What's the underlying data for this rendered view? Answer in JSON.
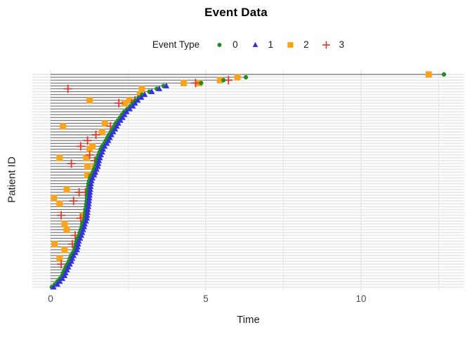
{
  "title": "Event Data",
  "legend": {
    "title": "Event Type",
    "items": [
      {
        "label": "0",
        "shape": "circle",
        "color": "#228B22"
      },
      {
        "label": "1",
        "shape": "triangle",
        "color": "#3434D6"
      },
      {
        "label": "2",
        "shape": "square",
        "color": "#F9A41E"
      },
      {
        "label": "3",
        "shape": "plus",
        "color": "#DE3A2E"
      }
    ]
  },
  "chart_data": {
    "type": "scatter",
    "title": "Event Data",
    "xlabel": "Time",
    "ylabel": "Patient ID",
    "x_ticks": [
      0,
      5,
      10
    ],
    "x_minor_ticks": [
      2.5,
      7.5,
      12.5
    ],
    "xlim": [
      -0.6,
      13.3
    ],
    "y_axis_labels_shown": false,
    "grid": true,
    "legend_position": "top",
    "note": "75 patients sorted by last event time; gray segment spans 0 to last event; events: type 0=green circle, 1=blue triangle, 2=orange square, 3=red plus",
    "colors": {
      "0": "#228B22",
      "1": "#3434D6",
      "2": "#F9A41E",
      "3": "#DE3A2E",
      "segment": "#787878",
      "grid": "#E8E8E8",
      "tick_text": "#4D4D4D"
    },
    "patients": [
      {
        "events": [
          [
            2,
            12.18
          ],
          [
            0,
            12.67
          ]
        ]
      },
      {
        "events": [
          [
            2,
            6.02
          ],
          [
            0,
            6.29
          ]
        ]
      },
      {
        "events": [
          [
            2,
            5.46
          ],
          [
            0,
            5.57
          ],
          [
            3,
            5.73
          ]
        ]
      },
      {
        "events": [
          [
            2,
            4.29
          ],
          [
            3,
            4.67
          ],
          [
            2,
            4.79
          ],
          [
            0,
            4.85
          ]
        ]
      },
      {
        "events": [
          [
            0,
            3.64
          ],
          [
            1,
            3.73
          ]
        ]
      },
      {
        "events": [
          [
            3,
            0.56
          ],
          [
            2,
            2.94
          ],
          [
            0,
            3.42
          ],
          [
            1,
            3.5
          ]
        ]
      },
      {
        "events": [
          [
            0,
            3.18
          ],
          [
            1,
            3.26
          ]
        ]
      },
      {
        "events": [
          [
            2,
            2.88
          ],
          [
            0,
            2.95
          ],
          [
            1,
            3.03
          ]
        ]
      },
      {
        "events": [
          [
            0,
            2.84
          ],
          [
            1,
            2.92
          ]
        ]
      },
      {
        "events": [
          [
            2,
            1.26
          ],
          [
            2,
            2.54
          ],
          [
            3,
            2.72
          ],
          [
            0,
            2.73
          ],
          [
            1,
            2.81
          ]
        ]
      },
      {
        "events": [
          [
            3,
            2.2
          ],
          [
            2,
            2.39
          ],
          [
            0,
            2.64
          ],
          [
            1,
            2.72
          ]
        ]
      },
      {
        "events": [
          [
            0,
            2.57
          ],
          [
            1,
            2.65
          ]
        ]
      },
      {
        "events": [
          [
            0,
            2.47
          ],
          [
            1,
            2.55
          ]
        ]
      },
      {
        "events": [
          [
            0,
            2.37
          ],
          [
            1,
            2.45
          ]
        ]
      },
      {
        "events": [
          [
            0,
            2.3
          ],
          [
            1,
            2.38
          ]
        ]
      },
      {
        "events": [
          [
            0,
            2.24
          ],
          [
            1,
            2.32
          ]
        ]
      },
      {
        "events": [
          [
            0,
            2.17
          ],
          [
            1,
            2.25
          ]
        ]
      },
      {
        "events": [
          [
            2,
            1.75
          ],
          [
            0,
            2.1
          ],
          [
            1,
            2.18
          ]
        ]
      },
      {
        "events": [
          [
            2,
            0.4
          ],
          [
            3,
            1.93
          ],
          [
            0,
            2.05
          ],
          [
            1,
            2.13
          ]
        ]
      },
      {
        "events": [
          [
            0,
            2.0
          ],
          [
            1,
            2.08
          ]
        ]
      },
      {
        "events": [
          [
            2,
            1.66
          ],
          [
            0,
            1.94
          ],
          [
            1,
            2.02
          ]
        ]
      },
      {
        "events": [
          [
            3,
            1.46
          ],
          [
            0,
            1.88
          ],
          [
            1,
            1.96
          ]
        ]
      },
      {
        "events": [
          [
            0,
            1.83
          ],
          [
            1,
            1.91
          ]
        ]
      },
      {
        "events": [
          [
            3,
            1.19
          ],
          [
            0,
            1.78
          ],
          [
            1,
            1.86
          ]
        ]
      },
      {
        "events": [
          [
            0,
            1.73
          ],
          [
            1,
            1.81
          ]
        ]
      },
      {
        "events": [
          [
            3,
            0.97
          ],
          [
            2,
            1.35
          ],
          [
            0,
            1.66
          ],
          [
            1,
            1.74
          ]
        ]
      },
      {
        "events": [
          [
            2,
            1.26
          ],
          [
            0,
            1.61
          ],
          [
            1,
            1.69
          ]
        ]
      },
      {
        "events": [
          [
            0,
            1.58
          ],
          [
            1,
            1.66
          ]
        ]
      },
      {
        "events": [
          [
            3,
            1.26
          ],
          [
            0,
            1.54
          ],
          [
            1,
            1.62
          ]
        ]
      },
      {
        "events": [
          [
            2,
            0.29
          ],
          [
            2,
            1.15
          ],
          [
            0,
            1.51
          ],
          [
            1,
            1.59
          ]
        ]
      },
      {
        "events": [
          [
            3,
            1.42
          ],
          [
            0,
            1.48
          ],
          [
            1,
            1.56
          ]
        ]
      },
      {
        "events": [
          [
            3,
            0.67
          ],
          [
            0,
            1.46
          ],
          [
            1,
            1.54
          ]
        ]
      },
      {
        "events": [
          [
            2,
            1.19
          ],
          [
            2,
            1.42
          ],
          [
            0,
            1.44
          ],
          [
            1,
            1.52
          ]
        ]
      },
      {
        "events": [
          [
            0,
            1.4
          ],
          [
            1,
            1.48
          ]
        ]
      },
      {
        "events": [
          [
            0,
            1.36
          ],
          [
            1,
            1.44
          ]
        ]
      },
      {
        "events": [
          [
            2,
            1.19
          ],
          [
            0,
            1.32
          ],
          [
            3,
            1.35
          ],
          [
            1,
            1.4
          ]
        ]
      },
      {
        "events": [
          [
            0,
            1.27
          ],
          [
            1,
            1.35
          ]
        ]
      },
      {
        "events": [
          [
            0,
            1.24
          ],
          [
            1,
            1.32
          ]
        ]
      },
      {
        "events": [
          [
            0,
            1.22
          ],
          [
            1,
            1.3
          ]
        ]
      },
      {
        "events": [
          [
            0,
            1.21
          ],
          [
            1,
            1.29
          ]
        ]
      },
      {
        "events": [
          [
            2,
            0.52
          ],
          [
            0,
            1.2
          ],
          [
            1,
            1.28
          ]
        ]
      },
      {
        "events": [
          [
            3,
            0.92
          ],
          [
            3,
            1.12
          ],
          [
            0,
            1.19
          ],
          [
            1,
            1.27
          ]
        ]
      },
      {
        "events": [
          [
            0,
            1.18
          ],
          [
            1,
            1.26
          ]
        ]
      },
      {
        "events": [
          [
            2,
            0.11
          ],
          [
            0,
            1.17
          ],
          [
            1,
            1.25
          ]
        ]
      },
      {
        "events": [
          [
            3,
            0.74
          ],
          [
            0,
            1.16
          ],
          [
            1,
            1.24
          ]
        ]
      },
      {
        "events": [
          [
            2,
            0.29
          ],
          [
            0,
            1.15
          ],
          [
            1,
            1.23
          ]
        ]
      },
      {
        "events": [
          [
            0,
            1.14
          ],
          [
            1,
            1.22
          ]
        ]
      },
      {
        "events": [
          [
            0,
            1.12
          ],
          [
            1,
            1.2
          ]
        ]
      },
      {
        "events": [
          [
            0,
            1.11
          ],
          [
            1,
            1.19
          ]
        ]
      },
      {
        "events": [
          [
            3,
            0.34
          ],
          [
            2,
            1.03
          ],
          [
            0,
            1.1
          ],
          [
            1,
            1.18
          ]
        ]
      },
      {
        "events": [
          [
            3,
            0.97
          ],
          [
            0,
            1.09
          ],
          [
            1,
            1.17
          ]
        ]
      },
      {
        "events": [
          [
            0,
            1.06
          ],
          [
            1,
            1.14
          ]
        ]
      },
      {
        "events": [
          [
            2,
            0.45
          ],
          [
            0,
            1.02
          ],
          [
            1,
            1.1
          ]
        ]
      },
      {
        "events": [
          [
            0,
            1.0
          ],
          [
            1,
            1.08
          ]
        ]
      },
      {
        "events": [
          [
            2,
            0.52
          ],
          [
            0,
            0.97
          ],
          [
            1,
            1.05
          ]
        ]
      },
      {
        "events": [
          [
            0,
            0.94
          ],
          [
            1,
            1.02
          ]
        ]
      },
      {
        "events": [
          [
            3,
            0.79
          ],
          [
            0,
            0.91
          ],
          [
            1,
            0.99
          ]
        ]
      },
      {
        "events": [
          [
            0,
            0.87
          ],
          [
            1,
            0.95
          ]
        ]
      },
      {
        "events": [
          [
            0,
            0.83
          ],
          [
            1,
            0.91
          ]
        ]
      },
      {
        "events": [
          [
            2,
            0.13
          ],
          [
            3,
            0.7
          ],
          [
            0,
            0.81
          ],
          [
            1,
            0.89
          ]
        ]
      },
      {
        "events": [
          [
            0,
            0.79
          ],
          [
            1,
            0.87
          ]
        ]
      },
      {
        "events": [
          [
            2,
            0.45
          ],
          [
            0,
            0.77
          ],
          [
            1,
            0.85
          ]
        ]
      },
      {
        "events": [
          [
            0,
            0.72
          ],
          [
            1,
            0.8
          ]
        ]
      },
      {
        "events": [
          [
            0,
            0.66
          ],
          [
            1,
            0.74
          ]
        ]
      },
      {
        "events": [
          [
            2,
            0.29
          ],
          [
            0,
            0.62
          ],
          [
            1,
            0.7
          ]
        ]
      },
      {
        "events": [
          [
            0,
            0.59
          ],
          [
            1,
            0.67
          ]
        ]
      },
      {
        "events": [
          [
            3,
            0.34
          ],
          [
            0,
            0.54
          ],
          [
            1,
            0.62
          ]
        ]
      },
      {
        "events": [
          [
            0,
            0.49
          ],
          [
            1,
            0.57
          ]
        ]
      },
      {
        "events": [
          [
            0,
            0.45
          ],
          [
            1,
            0.53
          ]
        ]
      },
      {
        "events": [
          [
            0,
            0.4
          ],
          [
            1,
            0.48
          ]
        ]
      },
      {
        "events": [
          [
            0,
            0.37
          ],
          [
            1,
            0.45
          ]
        ]
      },
      {
        "events": [
          [
            0,
            0.3
          ],
          [
            1,
            0.38
          ]
        ]
      },
      {
        "events": [
          [
            0,
            0.22
          ],
          [
            1,
            0.3
          ]
        ]
      },
      {
        "events": [
          [
            0,
            0.14
          ],
          [
            1,
            0.22
          ]
        ]
      },
      {
        "events": [
          [
            0,
            0.04
          ],
          [
            1,
            0.1
          ]
        ]
      }
    ]
  }
}
